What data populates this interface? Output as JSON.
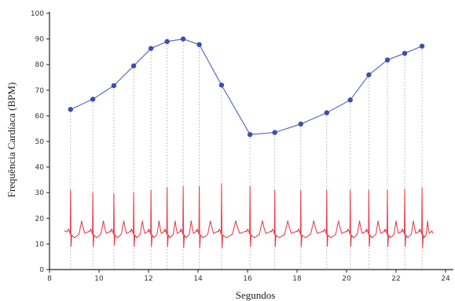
{
  "chart_data": {
    "type": "line",
    "title": "",
    "xlabel": "Segundos",
    "ylabel": "Frequência Cardíaca (BPM)",
    "xlim": [
      8,
      24
    ],
    "ylim": [
      0,
      100
    ],
    "xticks": [
      "8",
      "10",
      "12",
      "14",
      "16",
      "18",
      "20",
      "22",
      "24"
    ],
    "yticks": [
      "0",
      "10",
      "20",
      "30",
      "40",
      "50",
      "60",
      "70",
      "80",
      "90",
      "100"
    ],
    "series": [
      {
        "type": "line-with-markers",
        "color": "#5b6dc9",
        "marker_color": "#3d4fa8",
        "x": [
          8.85,
          9.75,
          10.6,
          11.4,
          12.1,
          12.75,
          13.4,
          14.05,
          14.95,
          16.1,
          17.1,
          18.15,
          19.2,
          20.15,
          20.9,
          21.65,
          22.35,
          23.05
        ],
        "y": [
          62.5,
          66.5,
          71.8,
          79.5,
          86.3,
          89.0,
          90.0,
          87.8,
          72.0,
          52.7,
          53.5,
          56.8,
          61.2,
          66.2,
          76.0,
          81.8,
          84.4,
          87.2
        ]
      },
      {
        "type": "ecg-trace",
        "color": "#e8424f",
        "baseline": 15,
        "beat_times": [
          8.85,
          9.75,
          10.6,
          11.4,
          12.1,
          12.75,
          13.4,
          14.05,
          14.95,
          16.1,
          17.1,
          18.15,
          19.2,
          20.15,
          20.9,
          21.65,
          22.35,
          23.05
        ],
        "r_peaks": [
          31,
          30,
          29.5,
          30,
          31,
          32,
          32.5,
          32.5,
          33.5,
          32.5,
          31,
          31,
          31,
          31,
          31,
          31,
          31.5,
          32
        ],
        "s_troughs": [
          9,
          9,
          9.5,
          9,
          9,
          9,
          8.5,
          8.5,
          8.5,
          9,
          9,
          9,
          9,
          9,
          9,
          9,
          9,
          8.5
        ]
      }
    ],
    "vertical_guides": true,
    "grid": false,
    "legend": "none"
  }
}
